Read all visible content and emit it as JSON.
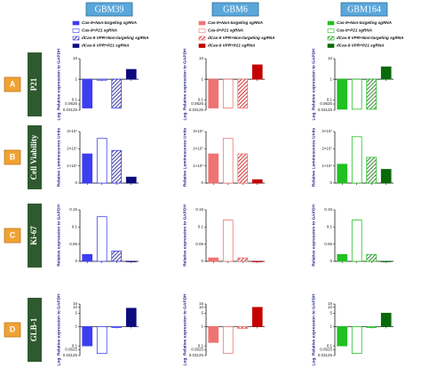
{
  "columns": [
    {
      "title": "GBM39",
      "legend": [
        "Cas-9+Non-targeting sgRNA",
        "Cas-9+P21 sgRNA",
        "dCas-9 VPR+Non-targeting sgRNA",
        "dCas-9 VPR+P21 sgRNA"
      ]
    },
    {
      "title": "GBM6",
      "legend": [
        "Cas-9+Non-targeting sgRNA",
        "Cas-9+P21 sgRNA",
        "dCas-9 VPR+Non-targeting sgRNA",
        "dCas-9 VPR+P21 sgRNA"
      ]
    },
    {
      "title": "GBM164",
      "legend": [
        "Cas-9+Non-targeting sgRNA",
        "Cas-9+P21 sgRNA",
        "dCas-9 VPR+Non-targeting sgRNA",
        "dCas-9 VPR+P21 sgRNA"
      ]
    }
  ],
  "rows": [
    {
      "letter": "A",
      "label": "P21"
    },
    {
      "letter": "B",
      "label": "Cell Viability"
    },
    {
      "letter": "C",
      "label": "Ki-67"
    },
    {
      "letter": "D",
      "label": "GLB-1"
    }
  ],
  "chart_data": [
    {
      "type": "bar",
      "ylabel": "Log. Relative expression to GAPDH",
      "log": true,
      "categories": [
        null,
        null,
        null,
        null
      ],
      "values": [
        0.04,
        0.9,
        0.04,
        3
      ],
      "ylim": [
        0.03125,
        10
      ],
      "yticks": [
        10,
        1,
        0.1,
        0.0625,
        0.03125
      ],
      "colors": [
        "#3d3df2",
        "#3d3df2",
        "#3d3df2",
        "#0c0c7e"
      ],
      "styles": [
        "solid",
        "outline",
        "hatch",
        "solid"
      ]
    },
    {
      "type": "bar",
      "ylabel": "Log. Relative expression to GAPDH",
      "log": true,
      "categories": [
        null,
        null,
        null,
        null
      ],
      "values": [
        0.04,
        0.04,
        0.04,
        5
      ],
      "ylim": [
        0.03125,
        10
      ],
      "yticks": [
        10,
        1,
        0.1,
        0.0625,
        0.03125
      ],
      "colors": [
        "#f07272",
        "#f07272",
        "#f07272",
        "#c40000"
      ],
      "styles": [
        "solid",
        "outline",
        "hatch",
        "solid"
      ]
    },
    {
      "type": "bar",
      "ylabel": "Log. Relative expression to GAPDH",
      "log": true,
      "categories": [
        null,
        null,
        null,
        null
      ],
      "values": [
        0.035,
        0.035,
        0.035,
        4
      ],
      "ylim": [
        0.03125,
        10
      ],
      "yticks": [
        10,
        1,
        0.1,
        0.0625,
        0.03125
      ],
      "colors": [
        "#22c022",
        "#22c022",
        "#22c022",
        "#0a6a0a"
      ],
      "styles": [
        "solid",
        "outline",
        "hatch",
        "solid"
      ]
    },
    {
      "type": "bar",
      "ylabel": "Relative Luminescence Units",
      "log": false,
      "categories": [
        null,
        null,
        null,
        null
      ],
      "values": [
        17000000,
        26000000,
        19000000,
        3500000
      ],
      "ylim": [
        0,
        30000000
      ],
      "yticks": [
        0,
        {
          "value": 10000000,
          "label": "1×10⁷"
        },
        {
          "value": 20000000,
          "label": "2×10⁷"
        },
        {
          "value": 30000000,
          "label": "3×10⁷"
        }
      ],
      "colors": [
        "#3d3df2",
        "#3d3df2",
        "#3d3df2",
        "#0c0c7e"
      ],
      "styles": [
        "solid",
        "outline",
        "hatch",
        "solid"
      ]
    },
    {
      "type": "bar",
      "ylabel": "Relative Luminescence Units",
      "log": false,
      "categories": [
        null,
        null,
        null,
        null
      ],
      "values": [
        17000000,
        26000000,
        17000000,
        2000000
      ],
      "ylim": [
        0,
        30000000
      ],
      "yticks": [
        0,
        {
          "value": 10000000,
          "label": "1×10⁷"
        },
        {
          "value": 20000000,
          "label": "2×10⁷"
        },
        {
          "value": 30000000,
          "label": "3×10⁷"
        }
      ],
      "colors": [
        "#f07272",
        "#f07272",
        "#f07272",
        "#c40000"
      ],
      "styles": [
        "solid",
        "outline",
        "hatch",
        "solid"
      ]
    },
    {
      "type": "bar",
      "ylabel": "Relative Luminescence Units",
      "log": false,
      "categories": [
        null,
        null,
        null,
        null
      ],
      "values": [
        11000000,
        27000000,
        15000000,
        8000000
      ],
      "ylim": [
        0,
        30000000
      ],
      "yticks": [
        0,
        {
          "value": 10000000,
          "label": "1×10⁷"
        },
        {
          "value": 20000000,
          "label": "2×10⁷"
        },
        {
          "value": 30000000,
          "label": "3×10⁷"
        }
      ],
      "colors": [
        "#22c022",
        "#22c022",
        "#22c022",
        "#0a6a0a"
      ],
      "styles": [
        "solid",
        "outline",
        "hatch",
        "solid"
      ]
    },
    {
      "type": "bar",
      "ylabel": "Relative expression to GAPDH",
      "log": false,
      "categories": [
        null,
        null,
        null,
        null
      ],
      "values": [
        0.02,
        0.13,
        0.03,
        0
      ],
      "ylim": [
        0,
        0.15
      ],
      "yticks": [
        0,
        0.05,
        0.1,
        0.15
      ],
      "colors": [
        "#3d3df2",
        "#3d3df2",
        "#3d3df2",
        "#0c0c7e"
      ],
      "styles": [
        "solid",
        "outline",
        "hatch",
        "solid"
      ]
    },
    {
      "type": "bar",
      "ylabel": "Relative expression to GAPDH",
      "log": false,
      "categories": [
        null,
        null,
        null,
        null
      ],
      "values": [
        0.01,
        0.12,
        0.01,
        0
      ],
      "ylim": [
        0,
        0.15
      ],
      "yticks": [
        0,
        0.05,
        0.1,
        0.15
      ],
      "colors": [
        "#f07272",
        "#f07272",
        "#f07272",
        "#c40000"
      ],
      "styles": [
        "solid",
        "outline",
        "hatch",
        "solid"
      ]
    },
    {
      "type": "bar",
      "ylabel": "Relative expression to GAPDH",
      "log": false,
      "categories": [
        null,
        null,
        null,
        null
      ],
      "values": [
        0.02,
        0.12,
        0.02,
        0
      ],
      "ylim": [
        0,
        0.15
      ],
      "yticks": [
        0,
        0.05,
        0.1,
        0.15
      ],
      "colors": [
        "#22c022",
        "#22c022",
        "#22c022",
        "#0a6a0a"
      ],
      "styles": [
        "solid",
        "outline",
        "hatch",
        "solid"
      ]
    },
    {
      "type": "bar",
      "ylabel": "Log. Relative expression to GAPDH",
      "log": true,
      "categories": [
        null,
        null,
        null,
        null
      ],
      "values": [
        0.1,
        0.04,
        0.9,
        9
      ],
      "ylim": [
        0.03125,
        15
      ],
      "yticks": [
        15,
        10,
        5,
        1,
        0.1,
        0.0625,
        0.03125
      ],
      "colors": [
        "#3d3df2",
        "#3d3df2",
        "#3d3df2",
        "#0c0c7e"
      ],
      "styles": [
        "solid",
        "outline",
        "hatch",
        "solid"
      ]
    },
    {
      "type": "bar",
      "ylabel": "Log. Relative expression to GAPDH",
      "log": true,
      "categories": [
        null,
        null,
        null,
        null
      ],
      "values": [
        0.15,
        0.04,
        0.8,
        10
      ],
      "ylim": [
        0.03125,
        15
      ],
      "yticks": [
        15,
        10,
        5,
        1,
        0.1,
        0.0625,
        0.03125
      ],
      "colors": [
        "#f07272",
        "#f07272",
        "#f07272",
        "#c40000"
      ],
      "styles": [
        "solid",
        "outline",
        "hatch",
        "solid"
      ]
    },
    {
      "type": "bar",
      "ylabel": "Log. Relative expression to GAPDH",
      "log": true,
      "categories": [
        null,
        null,
        null,
        null
      ],
      "values": [
        0.1,
        0.04,
        0.9,
        5
      ],
      "ylim": [
        0.03125,
        15
      ],
      "yticks": [
        15,
        10,
        5,
        1,
        0.1,
        0.0625,
        0.03125
      ],
      "colors": [
        "#22c022",
        "#22c022",
        "#22c022",
        "#0a6a0a"
      ],
      "styles": [
        "solid",
        "outline",
        "hatch",
        "solid"
      ]
    }
  ]
}
